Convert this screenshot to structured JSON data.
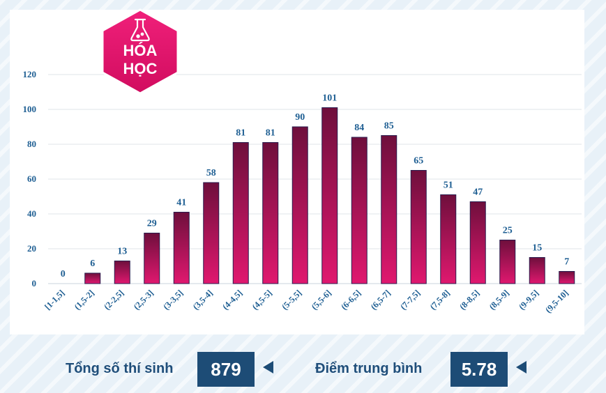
{
  "badge": {
    "line1": "HÓA",
    "line2": "HỌC",
    "icon": "flask-icon",
    "color": "#e0106a"
  },
  "chart_data": {
    "type": "bar",
    "categories": [
      "[1-1,5]",
      "(1,5-2]",
      "(2-2,5]",
      "(2,5-3]",
      "(3-3,5]",
      "(3,5-4]",
      "(4-4,5]",
      "(4,5-5]",
      "(5-5,5]",
      "(5,5-6]",
      "(6-6,5]",
      "(6,5-7]",
      "(7-7,5]",
      "(7,5-8]",
      "(8-8,5]",
      "(8,5-9]",
      "(9-9,5]",
      "(9,5-10]"
    ],
    "values": [
      0,
      6,
      13,
      29,
      41,
      58,
      81,
      81,
      90,
      101,
      84,
      85,
      65,
      51,
      47,
      25,
      15,
      7
    ],
    "ylim": [
      0,
      120
    ],
    "yticks": [
      0,
      20,
      40,
      60,
      80,
      100,
      120
    ],
    "grid": true,
    "bar_color_top": "#6e0f3c",
    "bar_color_bottom": "#e0186f",
    "label_color": "#1f5f93"
  },
  "footer": {
    "total_label": "Tổng số thí sinh",
    "total_value": "879",
    "avg_label": "Điểm trung bình",
    "avg_value": "5.78"
  }
}
